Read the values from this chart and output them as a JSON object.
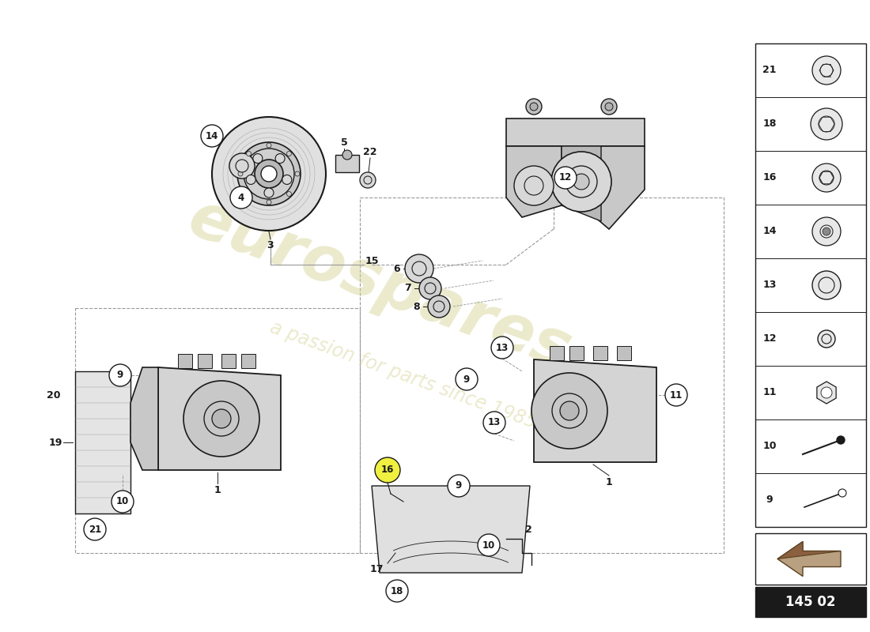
{
  "bg_color": "#ffffff",
  "line_color": "#1a1a1a",
  "gray_color": "#999999",
  "mid_gray": "#cccccc",
  "dark_gray": "#444444",
  "part_number_box": "145 02",
  "watermark1": "eurospares",
  "watermark2": "a passion for parts since 1985",
  "sidebar_items": [
    {
      "num": "21",
      "type": "bolt_small"
    },
    {
      "num": "18",
      "type": "bolt_large"
    },
    {
      "num": "16",
      "type": "bolt_hex"
    },
    {
      "num": "14",
      "type": "bolt_cap"
    },
    {
      "num": "13",
      "type": "washer"
    },
    {
      "num": "12",
      "type": "bushing_small"
    },
    {
      "num": "11",
      "type": "nut"
    },
    {
      "num": "10",
      "type": "rod"
    },
    {
      "num": "9",
      "type": "bolt_long"
    }
  ]
}
